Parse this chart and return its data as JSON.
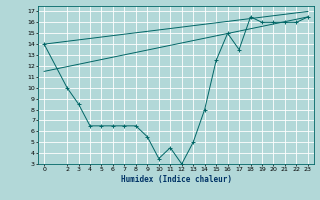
{
  "title": "",
  "xlabel": "Humidex (Indice chaleur)",
  "bg_color": "#b2d8d8",
  "grid_color": "#ffffff",
  "line_color": "#006666",
  "xlim": [
    -0.5,
    23.5
  ],
  "ylim": [
    3,
    17.5
  ],
  "xticks": [
    0,
    2,
    3,
    4,
    5,
    6,
    7,
    8,
    9,
    10,
    11,
    12,
    13,
    14,
    15,
    16,
    17,
    18,
    19,
    20,
    21,
    22,
    23
  ],
  "yticks": [
    3,
    4,
    5,
    6,
    7,
    8,
    9,
    10,
    11,
    12,
    13,
    14,
    15,
    16,
    17
  ],
  "line1_x": [
    0,
    2,
    3,
    4,
    5,
    6,
    7,
    8,
    9,
    10,
    11,
    12,
    13,
    14,
    15,
    16,
    17,
    18,
    19,
    20,
    21,
    22,
    23
  ],
  "line1_y": [
    14,
    10,
    8.5,
    6.5,
    6.5,
    6.5,
    6.5,
    6.5,
    5.5,
    3.5,
    4.5,
    3,
    5,
    8,
    12.5,
    15,
    13.5,
    16.5,
    16,
    16,
    16,
    16,
    16.5
  ],
  "line2_x": [
    0,
    23
  ],
  "line2_y": [
    14,
    17
  ],
  "line3_x": [
    0,
    23
  ],
  "line3_y": [
    11.5,
    16.5
  ]
}
